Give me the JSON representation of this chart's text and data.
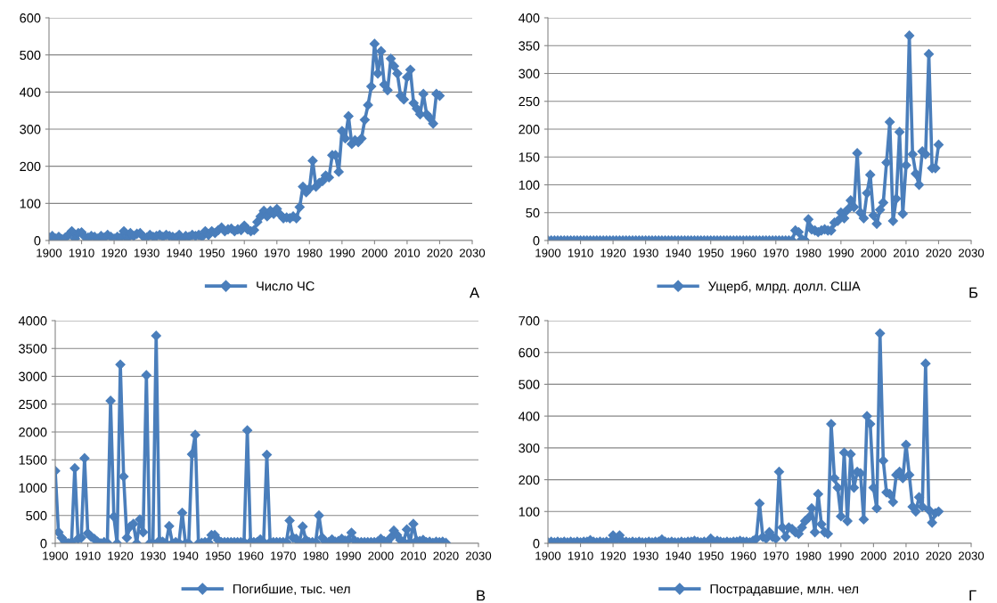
{
  "chart_data": [
    {
      "type": "line",
      "marker": "diamond",
      "grid": "y",
      "legend": "bottom",
      "annotations": [
        "А"
      ],
      "x": [
        1900,
        1901,
        1902,
        1903,
        1904,
        1905,
        1906,
        1907,
        1908,
        1909,
        1910,
        1911,
        1912,
        1913,
        1914,
        1915,
        1916,
        1917,
        1918,
        1919,
        1920,
        1921,
        1922,
        1923,
        1924,
        1925,
        1926,
        1927,
        1928,
        1929,
        1930,
        1931,
        1932,
        1933,
        1934,
        1935,
        1936,
        1937,
        1938,
        1939,
        1940,
        1941,
        1942,
        1943,
        1944,
        1945,
        1946,
        1947,
        1948,
        1949,
        1950,
        1951,
        1952,
        1953,
        1954,
        1955,
        1956,
        1957,
        1958,
        1959,
        1960,
        1961,
        1962,
        1963,
        1964,
        1965,
        1966,
        1967,
        1968,
        1969,
        1970,
        1971,
        1972,
        1973,
        1974,
        1975,
        1976,
        1977,
        1978,
        1979,
        1980,
        1981,
        1982,
        1983,
        1984,
        1985,
        1986,
        1987,
        1988,
        1989,
        1990,
        1991,
        1992,
        1993,
        1994,
        1995,
        1996,
        1997,
        1998,
        1999,
        2000,
        2001,
        2002,
        2003,
        2004,
        2005,
        2006,
        2007,
        2008,
        2009,
        2010,
        2011,
        2012,
        2013,
        2014,
        2015,
        2016,
        2017,
        2018,
        2019,
        2020
      ],
      "xlim": [
        1900,
        2030
      ],
      "xticks": [
        1900,
        1910,
        1920,
        1930,
        1940,
        1950,
        1960,
        1970,
        1980,
        1990,
        2000,
        2010,
        2020,
        2030
      ],
      "ylim": [
        0,
        600
      ],
      "yticks": [
        0,
        100,
        200,
        300,
        400,
        500,
        600
      ],
      "series": [
        {
          "name": "Число ЧС",
          "color": "#4a7ebb",
          "values": [
            8,
            12,
            5,
            10,
            3,
            8,
            15,
            25,
            5,
            20,
            22,
            10,
            8,
            12,
            10,
            5,
            12,
            8,
            15,
            10,
            5,
            10,
            8,
            25,
            5,
            20,
            12,
            18,
            20,
            10,
            8,
            15,
            10,
            12,
            15,
            10,
            15,
            12,
            10,
            8,
            15,
            5,
            12,
            10,
            15,
            12,
            15,
            10,
            25,
            15,
            25,
            20,
            28,
            35,
            25,
            30,
            32,
            25,
            30,
            28,
            40,
            30,
            25,
            28,
            50,
            65,
            80,
            65,
            80,
            72,
            85,
            70,
            60,
            62,
            60,
            65,
            60,
            90,
            145,
            130,
            140,
            215,
            145,
            155,
            160,
            175,
            170,
            230,
            230,
            185,
            295,
            275,
            335,
            260,
            270,
            265,
            275,
            325,
            365,
            415,
            530,
            450,
            510,
            420,
            405,
            490,
            470,
            450,
            390,
            380,
            440,
            460,
            370,
            355,
            340,
            395,
            340,
            330,
            315,
            395,
            390
          ]
        }
      ]
    },
    {
      "type": "line",
      "marker": "diamond",
      "grid": "y",
      "legend": "bottom",
      "annotations": [
        "Б"
      ],
      "x": [
        1900,
        1901,
        1902,
        1903,
        1904,
        1905,
        1906,
        1907,
        1908,
        1909,
        1910,
        1911,
        1912,
        1913,
        1914,
        1915,
        1916,
        1917,
        1918,
        1919,
        1920,
        1921,
        1922,
        1923,
        1924,
        1925,
        1926,
        1927,
        1928,
        1929,
        1930,
        1931,
        1932,
        1933,
        1934,
        1935,
        1936,
        1937,
        1938,
        1939,
        1940,
        1941,
        1942,
        1943,
        1944,
        1945,
        1946,
        1947,
        1948,
        1949,
        1950,
        1951,
        1952,
        1953,
        1954,
        1955,
        1956,
        1957,
        1958,
        1959,
        1960,
        1961,
        1962,
        1963,
        1964,
        1965,
        1966,
        1967,
        1968,
        1969,
        1970,
        1971,
        1972,
        1973,
        1974,
        1975,
        1976,
        1977,
        1978,
        1979,
        1980,
        1981,
        1982,
        1983,
        1984,
        1985,
        1986,
        1987,
        1988,
        1989,
        1990,
        1991,
        1992,
        1993,
        1994,
        1995,
        1996,
        1997,
        1998,
        1999,
        2000,
        2001,
        2002,
        2003,
        2004,
        2005,
        2006,
        2007,
        2008,
        2009,
        2010,
        2011,
        2012,
        2013,
        2014,
        2015,
        2016,
        2017,
        2018,
        2019,
        2020
      ],
      "xlim": [
        1900,
        2030
      ],
      "xticks": [
        1900,
        1910,
        1920,
        1930,
        1940,
        1950,
        1960,
        1970,
        1980,
        1990,
        2000,
        2010,
        2020,
        2030
      ],
      "ylim": [
        0,
        400
      ],
      "yticks": [
        0,
        50,
        100,
        150,
        200,
        250,
        300,
        350,
        400
      ],
      "series": [
        {
          "name": "Ущерб, млрд. долл. США",
          "color": "#4a7ebb",
          "values": [
            0,
            0,
            0,
            0,
            0,
            0,
            0,
            0,
            0,
            0,
            0,
            0,
            0,
            0,
            0,
            0,
            0,
            0,
            0,
            0,
            0,
            0,
            0,
            0,
            0,
            0,
            0,
            0,
            0,
            0,
            0,
            0,
            0,
            0,
            0,
            0,
            0,
            0,
            0,
            0,
            0,
            0,
            0,
            0,
            0,
            0,
            0,
            0,
            0,
            0,
            0,
            0,
            0,
            0,
            0,
            0,
            0,
            0,
            0,
            0,
            0,
            0,
            0,
            0,
            0,
            0,
            0,
            0,
            0,
            0,
            0,
            0,
            0,
            0,
            0,
            0,
            18,
            15,
            2,
            0,
            38,
            20,
            18,
            15,
            18,
            20,
            18,
            18,
            32,
            35,
            50,
            40,
            55,
            72,
            60,
            157,
            50,
            40,
            85,
            118,
            45,
            30,
            55,
            68,
            140,
            213,
            35,
            75,
            195,
            48,
            135,
            368,
            155,
            120,
            100,
            160,
            155,
            335,
            130,
            130,
            172
          ]
        }
      ]
    },
    {
      "type": "line",
      "marker": "diamond",
      "grid": "y",
      "legend": "bottom",
      "annotations": [
        "В"
      ],
      "x": [
        1900,
        1901,
        1902,
        1903,
        1904,
        1905,
        1906,
        1907,
        1908,
        1909,
        1910,
        1911,
        1912,
        1913,
        1914,
        1915,
        1916,
        1917,
        1918,
        1919,
        1920,
        1921,
        1922,
        1923,
        1924,
        1925,
        1926,
        1927,
        1928,
        1929,
        1930,
        1931,
        1932,
        1933,
        1934,
        1935,
        1936,
        1937,
        1938,
        1939,
        1940,
        1941,
        1942,
        1943,
        1944,
        1945,
        1946,
        1947,
        1948,
        1949,
        1950,
        1951,
        1952,
        1953,
        1954,
        1955,
        1956,
        1957,
        1958,
        1959,
        1960,
        1961,
        1962,
        1963,
        1964,
        1965,
        1966,
        1967,
        1968,
        1969,
        1970,
        1971,
        1972,
        1973,
        1974,
        1975,
        1976,
        1977,
        1978,
        1979,
        1980,
        1981,
        1982,
        1983,
        1984,
        1985,
        1986,
        1987,
        1988,
        1989,
        1990,
        1991,
        1992,
        1993,
        1994,
        1995,
        1996,
        1997,
        1998,
        1999,
        2000,
        2001,
        2002,
        2003,
        2004,
        2005,
        2006,
        2007,
        2008,
        2009,
        2010,
        2011,
        2012,
        2013,
        2014,
        2015,
        2016,
        2017,
        2018,
        2019,
        2020
      ],
      "xlim": [
        1900,
        2030
      ],
      "xticks": [
        1900,
        1910,
        1920,
        1930,
        1940,
        1950,
        1960,
        1970,
        1980,
        1990,
        2000,
        2010,
        2020,
        2030
      ],
      "ylim": [
        0,
        4000
      ],
      "yticks": [
        0,
        500,
        1000,
        1500,
        2000,
        2500,
        3000,
        3500,
        4000
      ],
      "series": [
        {
          "name": "Погибшие, тыс. чел",
          "color": "#4a7ebb",
          "values": [
            1300,
            200,
            100,
            30,
            0,
            20,
            1350,
            80,
            100,
            1530,
            180,
            120,
            80,
            30,
            0,
            20,
            10,
            2560,
            480,
            0,
            3210,
            1200,
            100,
            300,
            350,
            0,
            430,
            200,
            3020,
            0,
            0,
            3730,
            50,
            30,
            0,
            310,
            0,
            20,
            10,
            550,
            0,
            0,
            1600,
            1950,
            0,
            10,
            20,
            20,
            150,
            150,
            60,
            20,
            20,
            20,
            20,
            20,
            20,
            20,
            20,
            2030,
            30,
            20,
            20,
            70,
            20,
            1590,
            20,
            20,
            20,
            20,
            20,
            20,
            410,
            100,
            80,
            20,
            300,
            60,
            20,
            20,
            20,
            500,
            100,
            30,
            20,
            70,
            30,
            40,
            80,
            50,
            60,
            190,
            50,
            20,
            20,
            20,
            20,
            20,
            20,
            30,
            80,
            40,
            20,
            100,
            230,
            150,
            60,
            30,
            250,
            20,
            350,
            50,
            40,
            60,
            20,
            30,
            10,
            30,
            20,
            30,
            10
          ]
        }
      ]
    },
    {
      "type": "line",
      "marker": "diamond",
      "grid": "y",
      "legend": "bottom",
      "annotations": [
        "Г"
      ],
      "x": [
        1900,
        1901,
        1902,
        1903,
        1904,
        1905,
        1906,
        1907,
        1908,
        1909,
        1910,
        1911,
        1912,
        1913,
        1914,
        1915,
        1916,
        1917,
        1918,
        1919,
        1920,
        1921,
        1922,
        1923,
        1924,
        1925,
        1926,
        1927,
        1928,
        1929,
        1930,
        1931,
        1932,
        1933,
        1934,
        1935,
        1936,
        1937,
        1938,
        1939,
        1940,
        1941,
        1942,
        1943,
        1944,
        1945,
        1946,
        1947,
        1948,
        1949,
        1950,
        1951,
        1952,
        1953,
        1954,
        1955,
        1956,
        1957,
        1958,
        1959,
        1960,
        1961,
        1962,
        1963,
        1964,
        1965,
        1966,
        1967,
        1968,
        1969,
        1970,
        1971,
        1972,
        1973,
        1974,
        1975,
        1976,
        1977,
        1978,
        1979,
        1980,
        1981,
        1982,
        1983,
        1984,
        1985,
        1986,
        1987,
        1988,
        1989,
        1990,
        1991,
        1992,
        1993,
        1994,
        1995,
        1996,
        1997,
        1998,
        1999,
        2000,
        2001,
        2002,
        2003,
        2004,
        2005,
        2006,
        2007,
        2008,
        2009,
        2010,
        2011,
        2012,
        2013,
        2014,
        2015,
        2016,
        2017,
        2018,
        2019,
        2020
      ],
      "xlim": [
        1900,
        2030
      ],
      "xticks": [
        1900,
        1910,
        1920,
        1930,
        1940,
        1950,
        1960,
        1970,
        1980,
        1990,
        2000,
        2010,
        2020,
        2030
      ],
      "ylim": [
        0,
        700
      ],
      "yticks": [
        0,
        100,
        200,
        300,
        400,
        500,
        600,
        700
      ],
      "series": [
        {
          "name": "Пострадавшие, млн. чел",
          "color": "#4a7ebb",
          "values": [
            3,
            5,
            3,
            5,
            3,
            5,
            3,
            5,
            3,
            5,
            3,
            5,
            5,
            10,
            5,
            3,
            5,
            3,
            5,
            3,
            25,
            10,
            25,
            5,
            5,
            3,
            5,
            3,
            5,
            3,
            3,
            5,
            3,
            5,
            5,
            12,
            5,
            3,
            5,
            3,
            3,
            5,
            3,
            5,
            5,
            8,
            5,
            3,
            5,
            3,
            15,
            5,
            8,
            5,
            3,
            5,
            3,
            5,
            5,
            8,
            5,
            5,
            3,
            8,
            15,
            125,
            20,
            15,
            35,
            20,
            15,
            225,
            50,
            20,
            50,
            45,
            35,
            30,
            50,
            70,
            80,
            110,
            35,
            155,
            60,
            35,
            30,
            375,
            205,
            175,
            85,
            285,
            70,
            280,
            175,
            225,
            220,
            75,
            400,
            375,
            175,
            110,
            660,
            260,
            160,
            155,
            130,
            215,
            225,
            205,
            310,
            215,
            115,
            100,
            145,
            115,
            565,
            105,
            65,
            95,
            100
          ]
        }
      ]
    }
  ]
}
